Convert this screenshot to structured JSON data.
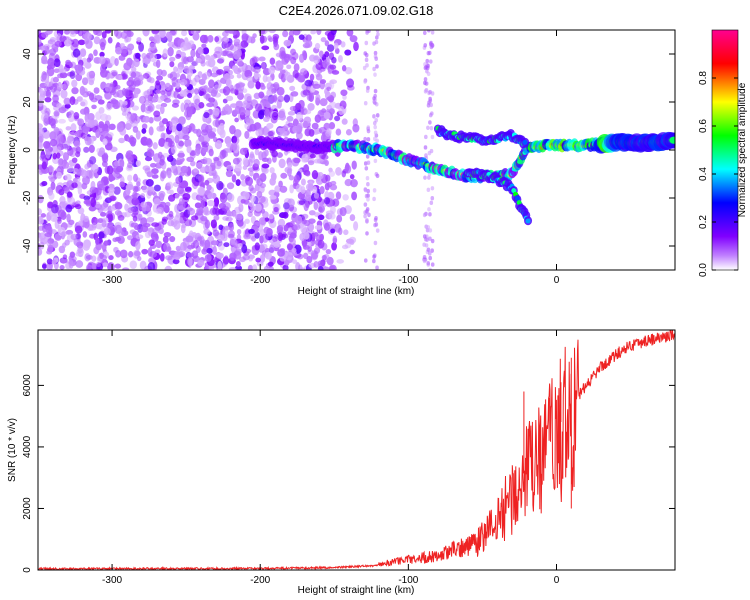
{
  "title": "C2E4.2026.071.09.02.G18",
  "chart_data": [
    {
      "type": "heatmap",
      "xlabel": "Height of straight line (km)",
      "ylabel": "Frequency (Hz)",
      "xlim": [
        -350,
        80
      ],
      "ylim": [
        -50,
        50
      ],
      "x_ticks": [
        -300,
        -200,
        -100,
        0
      ],
      "y_ticks": [
        -40,
        -20,
        0,
        20,
        40
      ],
      "colorbar": {
        "label": "Normalized spectral amplitude",
        "range": [
          0,
          1
        ],
        "ticks": [
          0.0,
          0.2,
          0.4,
          0.6,
          0.8
        ],
        "tick_labels": [
          "0.0",
          "0.2",
          "0.4",
          "0.6",
          "0.8"
        ],
        "colors": [
          "#ffffff",
          "#8000ff",
          "#0000ff",
          "#00ffff",
          "#00ff00",
          "#ffff00",
          "#ff0000",
          "#ff0080"
        ]
      },
      "ridge": [
        {
          "x": -200,
          "y": 3
        },
        {
          "x": -180,
          "y": 2
        },
        {
          "x": -160,
          "y": 1
        },
        {
          "x": -140,
          "y": 2
        },
        {
          "x": -120,
          "y": 0
        },
        {
          "x": -100,
          "y": -4
        },
        {
          "x": -80,
          "y": -8
        },
        {
          "x": -60,
          "y": -11
        },
        {
          "x": -40,
          "y": -11
        },
        {
          "x": -30,
          "y": -10
        },
        {
          "x": -20,
          "y": 1
        },
        {
          "x": 0,
          "y": 2
        },
        {
          "x": 20,
          "y": 2
        },
        {
          "x": 40,
          "y": 3
        },
        {
          "x": 60,
          "y": 3
        },
        {
          "x": 80,
          "y": 4
        }
      ],
      "upper_branch": [
        {
          "x": -80,
          "y": 8
        },
        {
          "x": -70,
          "y": 6
        },
        {
          "x": -60,
          "y": 5
        },
        {
          "x": -45,
          "y": 4
        },
        {
          "x": -30,
          "y": 6
        },
        {
          "x": -20,
          "y": 2
        }
      ],
      "lower_branch": [
        {
          "x": -60,
          "y": -9
        },
        {
          "x": -40,
          "y": -12
        },
        {
          "x": -30,
          "y": -16
        },
        {
          "x": -25,
          "y": -23
        },
        {
          "x": -18,
          "y": -30
        }
      ]
    },
    {
      "type": "line",
      "xlabel": "Height of straight line (km)",
      "ylabel": "SNR (10 * v/v)",
      "xlim": [
        -350,
        80
      ],
      "ylim": [
        0,
        7800
      ],
      "x_ticks": [
        -300,
        -200,
        -100,
        0
      ],
      "y_ticks": [
        0,
        2000,
        4000,
        6000
      ],
      "color": "#ee2222",
      "envelope": [
        {
          "x": -350,
          "y": 40
        },
        {
          "x": -200,
          "y": 50
        },
        {
          "x": -150,
          "y": 80
        },
        {
          "x": -120,
          "y": 150
        },
        {
          "x": -100,
          "y": 280
        },
        {
          "x": -80,
          "y": 380
        },
        {
          "x": -60,
          "y": 650
        },
        {
          "x": -50,
          "y": 1100
        },
        {
          "x": -40,
          "y": 1700
        },
        {
          "x": -30,
          "y": 2500
        },
        {
          "x": -20,
          "y": 3300
        },
        {
          "x": -10,
          "y": 3800
        },
        {
          "x": 0,
          "y": 4600
        },
        {
          "x": 10,
          "y": 5300
        },
        {
          "x": 20,
          "y": 6000
        },
        {
          "x": 30,
          "y": 6600
        },
        {
          "x": 40,
          "y": 7000
        },
        {
          "x": 50,
          "y": 7300
        },
        {
          "x": 60,
          "y": 7450
        },
        {
          "x": 70,
          "y": 7550
        },
        {
          "x": 80,
          "y": 7650
        }
      ],
      "spikes": [
        {
          "x": 10,
          "y": 6900
        },
        {
          "x": 3,
          "y": 6100
        },
        {
          "x": -22,
          "y": 5800
        },
        {
          "x": -5,
          "y": 5600
        },
        {
          "x": 10,
          "y": 2000
        }
      ]
    }
  ]
}
